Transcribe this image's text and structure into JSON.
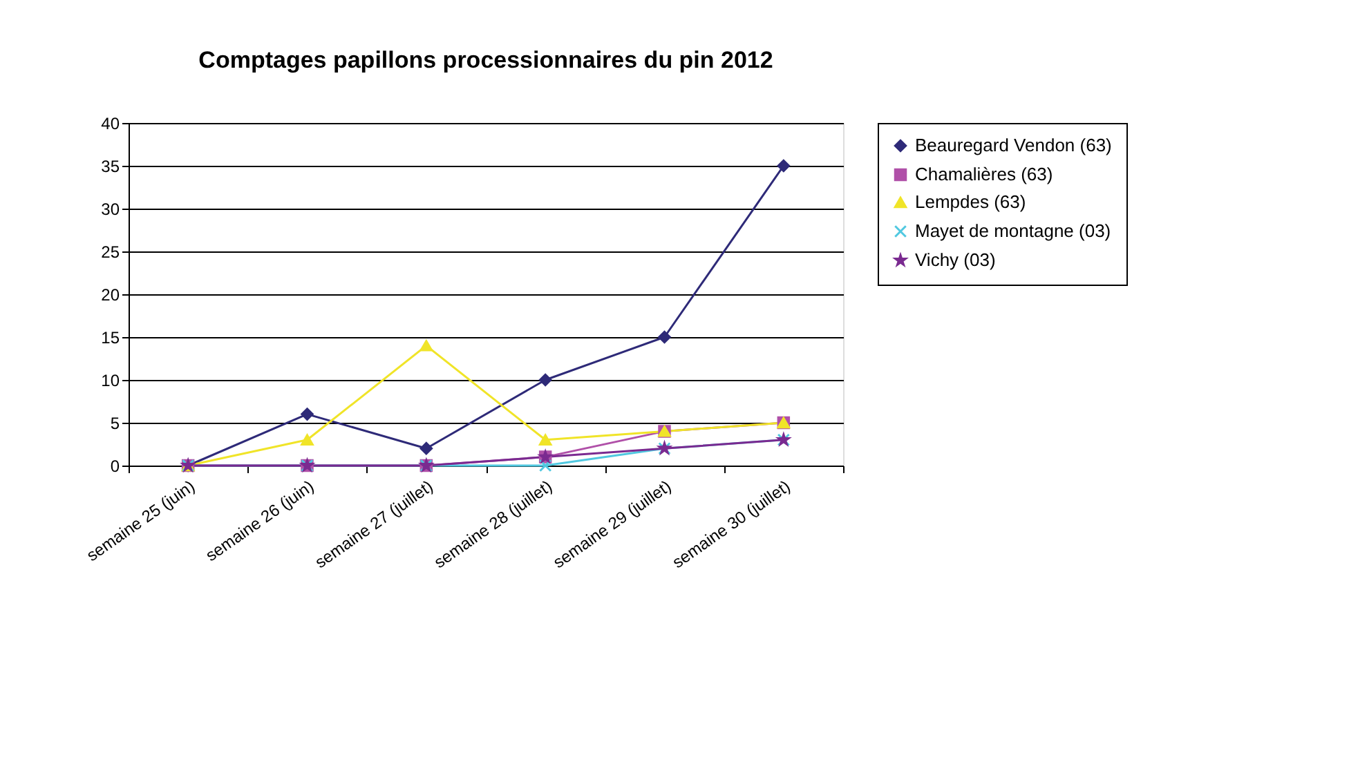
{
  "chart_data": {
    "type": "line",
    "title": "Comptages papillons processionnaires du pin 2012",
    "categories": [
      "semaine 25 (juin)",
      "semaine 26 (juin)",
      "semaine 27 (juillet)",
      "semaine 28 (juillet)",
      "semaine 29 (juillet)",
      "semaine 30 (juillet)"
    ],
    "series": [
      {
        "name": "Beauregard Vendon (63)",
        "color": "#2e2a78",
        "marker": "diamond",
        "values": [
          0,
          6,
          2,
          10,
          15,
          35
        ]
      },
      {
        "name": "Chamalières (63)",
        "color": "#b050a8",
        "marker": "square",
        "values": [
          0,
          0,
          0,
          1,
          4,
          5
        ]
      },
      {
        "name": "Lempdes (63)",
        "color": "#f0e428",
        "marker": "triangle",
        "values": [
          0,
          3,
          14,
          3,
          4,
          5
        ]
      },
      {
        "name": "Mayet de montagne (03)",
        "color": "#50c8e0",
        "marker": "cross",
        "values": [
          0,
          0,
          0,
          0,
          2,
          3
        ]
      },
      {
        "name": "Vichy (03)",
        "color": "#7a2a90",
        "marker": "star",
        "values": [
          0,
          0,
          0,
          1,
          2,
          3
        ]
      }
    ],
    "ylim": [
      0,
      40
    ],
    "yticks": [
      0,
      5,
      10,
      15,
      20,
      25,
      30,
      35,
      40
    ],
    "grid": "y",
    "legend": "right",
    "line_style": "solid"
  }
}
